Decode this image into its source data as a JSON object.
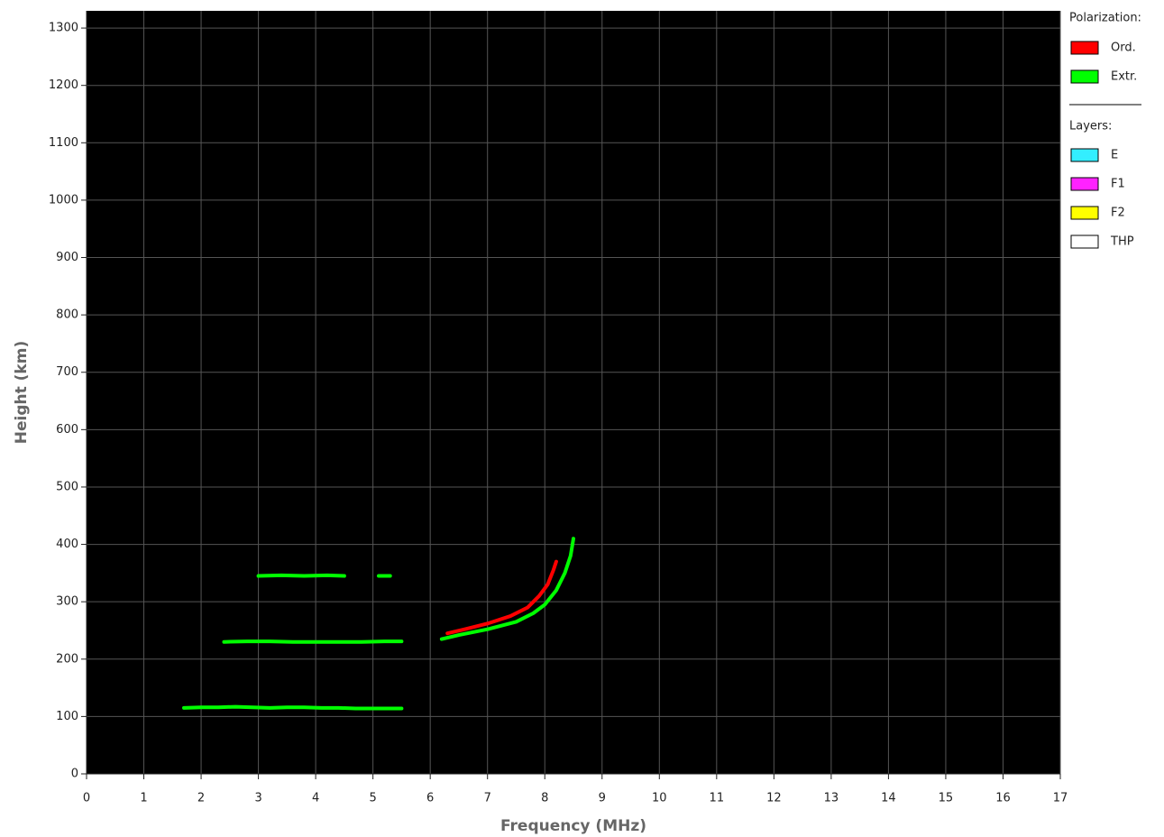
{
  "chart_data": {
    "type": "line",
    "x_label": "Frequency (MHz)",
    "y_label": "Height (km)",
    "xlim": [
      0,
      17
    ],
    "ylim": [
      0,
      1330
    ],
    "xticks": [
      0,
      1,
      2,
      3,
      4,
      5,
      6,
      7,
      8,
      9,
      10,
      11,
      12,
      13,
      14,
      15,
      16,
      17
    ],
    "yticks": [
      0,
      100,
      200,
      300,
      400,
      500,
      600,
      700,
      800,
      900,
      1000,
      1100,
      1200,
      1300
    ],
    "grid": true,
    "background": "#000000",
    "legend_title": "Polarization:",
    "series": [
      {
        "name": "Ord.",
        "color": "#ff0000",
        "x": [
          6.3,
          6.6,
          7.0,
          7.4,
          7.7,
          7.9,
          8.05,
          8.15,
          8.2
        ],
        "values": [
          245,
          252,
          262,
          275,
          290,
          310,
          330,
          355,
          370
        ]
      },
      {
        "name": "Extr.",
        "color": "#00ff00",
        "x": [
          1.7,
          2.0,
          2.3,
          2.6,
          2.9,
          3.2,
          3.5,
          3.8,
          4.1,
          4.4,
          4.7,
          5.0,
          5.3,
          5.5,
          null,
          2.4,
          2.8,
          3.2,
          3.6,
          4.0,
          4.4,
          4.8,
          5.2,
          5.5,
          null,
          3.0,
          3.4,
          3.8,
          4.2,
          4.5,
          null,
          5.1,
          5.3,
          null,
          6.2,
          6.5,
          7.0,
          7.5,
          7.8,
          8.0,
          8.2,
          8.35,
          8.45,
          8.5
        ],
        "values": [
          115,
          116,
          116,
          117,
          116,
          115,
          116,
          116,
          115,
          115,
          114,
          114,
          114,
          114,
          null,
          230,
          231,
          231,
          230,
          230,
          230,
          230,
          231,
          231,
          null,
          345,
          346,
          345,
          346,
          345,
          null,
          345,
          345,
          null,
          235,
          242,
          252,
          265,
          280,
          295,
          320,
          350,
          380,
          410
        ]
      }
    ],
    "layers_legend": {
      "title": "Layers:",
      "items": [
        {
          "name": "E",
          "color": "#33eeff"
        },
        {
          "name": "F1",
          "color": "#ff22ff"
        },
        {
          "name": "F2",
          "color": "#ffff00"
        },
        {
          "name": "THP",
          "color": "#ffffff"
        }
      ]
    }
  }
}
